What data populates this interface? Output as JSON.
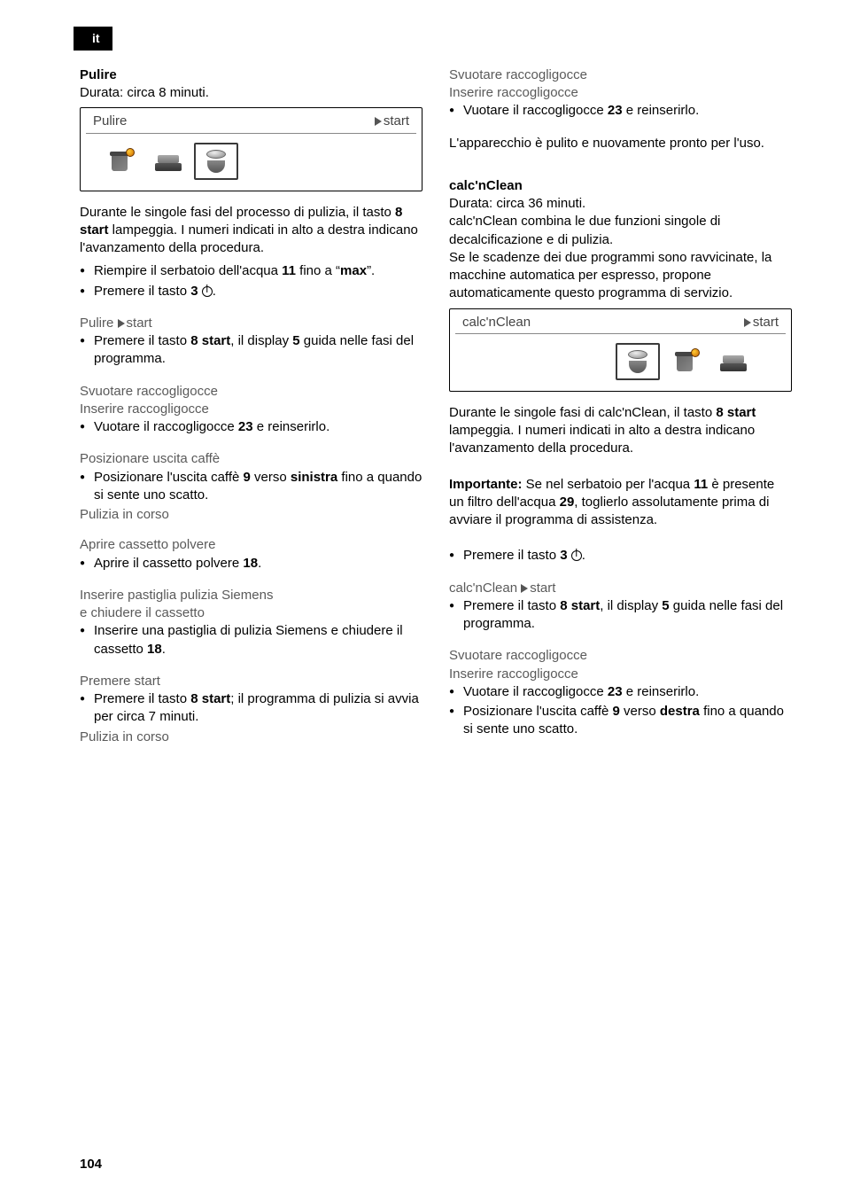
{
  "lang_tab": "it",
  "page_number": "104",
  "left": {
    "h_pulire": "Pulire",
    "durata": "Durata: circa 8 minuti.",
    "display1": {
      "title": "Pulire",
      "start": "start"
    },
    "intro_1": "Durante le singole fasi del processo di puli­zia, il tasto ",
    "intro_2": "8 start",
    "intro_3": " lampeggia. I numeri indi­cati in alto a destra indicano l'avanzamento della procedura.",
    "b1a": "Riempire il serbatoio dell'acqua ",
    "b1b": "11",
    "b1c": " fino a “",
    "b1d": "max",
    "b1e": "”.",
    "b2a": "Premere il tasto ",
    "b2b": "3",
    "b2c": " ",
    "pulire_start": "Pulire ",
    "b3a": "Premere il tasto ",
    "b3b": "8 start",
    "b3c": ", il display ",
    "b3d": "5",
    "b3e": " guida nelle fasi del programma.",
    "svuotare": "Svuotare raccogligocce",
    "inserire": "Inserire raccogligocce",
    "b4a": "Vuotare il raccogligocce ",
    "b4b": "23",
    "b4c": " e reinserirlo.",
    "pos_uscita": "Posizionare uscita caffè",
    "b5a": "Posizionare l'uscita caffè ",
    "b5b": "9",
    "b5c": " verso ",
    "b5d": "sinistra",
    "b5e": " fino a quando si sente uno scatto.",
    "pulizia_corso": "Pulizia in corso",
    "aprire_cassetto": "Aprire cassetto polvere",
    "b6a": "Aprire il cassetto polvere ",
    "b6b": "18",
    "b6c": ".",
    "ins_pastiglia": "Inserire pastiglia pulizia Siemens",
    "e_chiudere": "e chiudere il cassetto",
    "b7a": "Inserire una pastiglia di pulizia Siemens e chiudere il cassetto ",
    "b7b": "18",
    "b7c": ".",
    "premere_start": "Premere start",
    "b8a": "Premere il tasto ",
    "b8b": "8 start",
    "b8c": "; il programma di pulizia si avvia per circa 7 minuti.",
    "pulizia_corso2": "Pulizia in corso"
  },
  "right": {
    "svuotare": "Svuotare raccogligocce",
    "inserire": "Inserire raccogligocce",
    "b1a": "Vuotare il raccogligocce ",
    "b1b": "23",
    "b1c": " e reinserirlo.",
    "app_pulito": "L'apparecchio è pulito e nuovamente pronto per l'uso.",
    "h_calc": "calc'nClean",
    "durata": "Durata: circa 36 minuti.",
    "desc1": "calc'nClean combina le due funzioni singole di decalcificazione e di pulizia.",
    "desc2": "Se le scadenze dei due programmi sono ravvicinate, la macchine automatica per espresso, propone automaticamente questo programma di servizio.",
    "display2": {
      "title": "calc'nClean",
      "start": "start"
    },
    "intro_1": "Durante le singole fasi di calc'nClean, il tasto ",
    "intro_2": "8 start",
    "intro_3": " lampeggia. I numeri indicati in alto a destra indicano l'avanzamento della procedura.",
    "imp_1": "Importante:",
    "imp_2": " Se nel serbatoio per l'acqua ",
    "imp_3": "11",
    "imp_4": " è presente un filtro dell'acqua ",
    "imp_5": "29",
    "imp_6": ", toglierlo assolutamente prima di avviare il programma di assistenza.",
    "b2a": "Premere il tasto ",
    "b2b": "3",
    "b2c": " ",
    "calc_start": "calc'nClean ",
    "b3a": "Premere il tasto ",
    "b3b": "8 start",
    "b3c": ", il display ",
    "b3d": "5",
    "b3e": " guida nelle fasi del programma.",
    "svuotare2": "Svuotare raccogligocce",
    "inserire2": "Inserire raccogligocce",
    "b4a": "Vuotare il raccogligocce ",
    "b4b": "23",
    "b4c": " e reinserirlo.",
    "b5a": "Posizionare l'uscita caffè ",
    "b5b": "9",
    "b5c": " verso ",
    "b5d": "destra",
    "b5e": " fino a quando si sente uno scatto."
  }
}
